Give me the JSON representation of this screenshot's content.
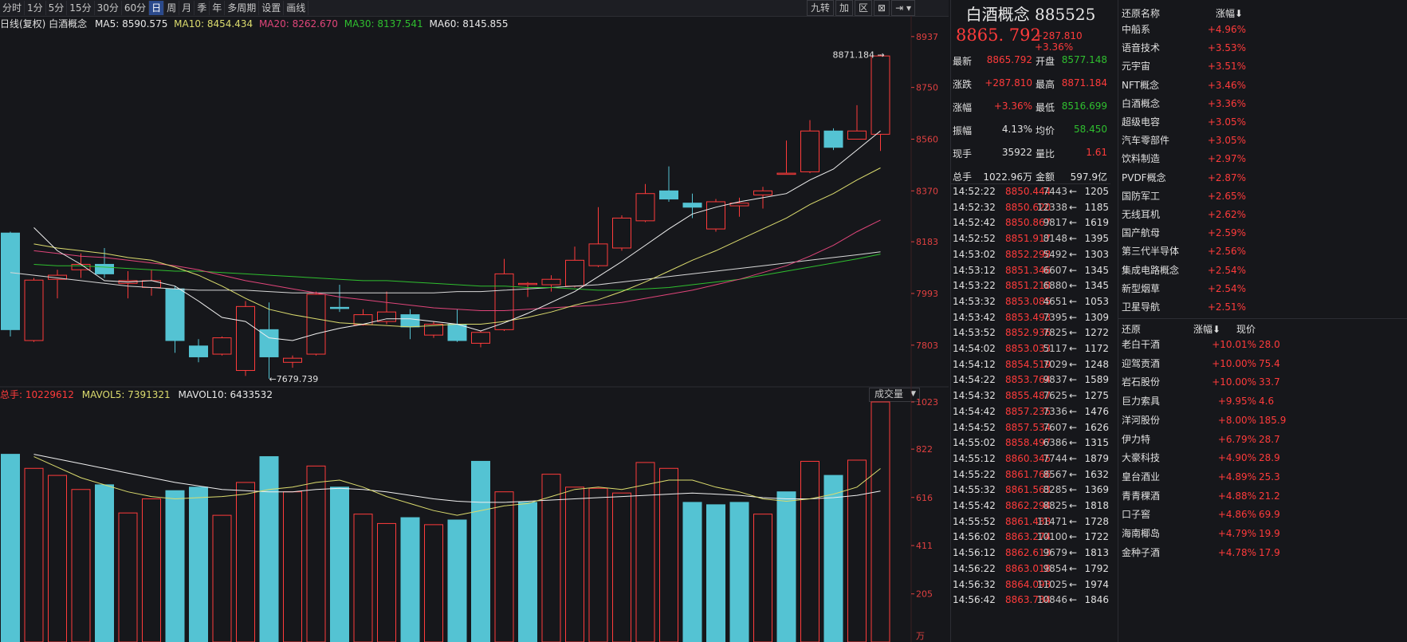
{
  "toolbar": {
    "periods": [
      "分时",
      "1分",
      "5分",
      "15分",
      "30分",
      "60分",
      "日",
      "周",
      "月",
      "季",
      "年",
      "多周期",
      "设置",
      "画线"
    ],
    "active": "日",
    "right_buttons": [
      "九转",
      "加",
      "区",
      "⊠"
    ]
  },
  "ma_legend": {
    "name": "日线(复权) 白酒概念",
    "ma5": "MA5: 8590.575",
    "ma10": "MA10: 8454.434",
    "ma20": "MA20: 8262.670",
    "ma30": "MA30: 8137.541",
    "ma60": "MA60: 8145.855"
  },
  "vol_legend": {
    "total": "总手: 10229612",
    "mavol5": "MAVOL5: 7391321",
    "mavol10": "MAVOL10: 6433532",
    "dropdown": "成交量"
  },
  "colors": {
    "up": "#ff3b3b",
    "down": "#54c3d3",
    "ma5": "#e8e8e8",
    "ma10": "#dcdc6e",
    "ma20": "#e0457a",
    "ma30": "#2fbf2f",
    "ma60": "#e8e8e8",
    "axis": "#e04040"
  },
  "chart_data": [
    {
      "type": "candlestick",
      "title": "白酒概念 日线(复权)",
      "y_ticks": [
        7803,
        7993,
        8183,
        8370,
        8560,
        8750,
        8937
      ],
      "ylim": [
        7650,
        8960
      ],
      "annotations": {
        "high_label": "8871.184",
        "low_label": "7679.739"
      },
      "candles": [
        {
          "o": 8215,
          "c": 7860,
          "h": 8220,
          "l": 7835
        },
        {
          "o": 7820,
          "c": 8042,
          "h": 8050,
          "l": 7815
        },
        {
          "o": 8045,
          "c": 8060,
          "h": 8080,
          "l": 7975
        },
        {
          "o": 8080,
          "c": 8100,
          "h": 8140,
          "l": 8050
        },
        {
          "o": 8100,
          "c": 8065,
          "h": 8160,
          "l": 8050
        },
        {
          "o": 8030,
          "c": 8040,
          "h": 8075,
          "l": 7975
        },
        {
          "o": 8015,
          "c": 8040,
          "h": 8080,
          "l": 7985
        },
        {
          "o": 8010,
          "c": 7820,
          "h": 8020,
          "l": 7775
        },
        {
          "o": 7800,
          "c": 7760,
          "h": 7825,
          "l": 7740
        },
        {
          "o": 7770,
          "c": 7830,
          "h": 7835,
          "l": 7765
        },
        {
          "o": 7710,
          "c": 7945,
          "h": 7965,
          "l": 7690
        },
        {
          "o": 7860,
          "c": 7760,
          "h": 7960,
          "l": 7679.739
        },
        {
          "o": 7740,
          "c": 7755,
          "h": 7765,
          "l": 7720
        },
        {
          "o": 7770,
          "c": 7990,
          "h": 8000,
          "l": 7765
        },
        {
          "o": 7942,
          "c": 7938,
          "h": 8025,
          "l": 7925
        },
        {
          "o": 7878,
          "c": 7915,
          "h": 7935,
          "l": 7875
        },
        {
          "o": 7890,
          "c": 7925,
          "h": 8000,
          "l": 7880
        },
        {
          "o": 7915,
          "c": 7870,
          "h": 7935,
          "l": 7825
        },
        {
          "o": 7840,
          "c": 7880,
          "h": 7890,
          "l": 7830
        },
        {
          "o": 7880,
          "c": 7820,
          "h": 7935,
          "l": 7815
        },
        {
          "o": 7810,
          "c": 7850,
          "h": 7855,
          "l": 7795
        },
        {
          "o": 7860,
          "c": 8065,
          "h": 8120,
          "l": 7855
        },
        {
          "o": 8030,
          "c": 8030,
          "h": 8035,
          "l": 7980
        },
        {
          "o": 8025,
          "c": 8045,
          "h": 8060,
          "l": 8000
        },
        {
          "o": 8020,
          "c": 8115,
          "h": 8165,
          "l": 8015
        },
        {
          "o": 8095,
          "c": 8175,
          "h": 8310,
          "l": 8090
        },
        {
          "o": 8160,
          "c": 8270,
          "h": 8280,
          "l": 8150
        },
        {
          "o": 8260,
          "c": 8360,
          "h": 8395,
          "l": 8255
        },
        {
          "o": 8370,
          "c": 8340,
          "h": 8460,
          "l": 8330
        },
        {
          "o": 8325,
          "c": 8310,
          "h": 8360,
          "l": 8270
        },
        {
          "o": 8230,
          "c": 8330,
          "h": 8340,
          "l": 8220
        },
        {
          "o": 8315,
          "c": 8325,
          "h": 8345,
          "l": 8275
        },
        {
          "o": 8355,
          "c": 8370,
          "h": 8385,
          "l": 8305
        },
        {
          "o": 8435,
          "c": 8435,
          "h": 8555,
          "l": 8430
        },
        {
          "o": 8440,
          "c": 8590,
          "h": 8630,
          "l": 8435
        },
        {
          "o": 8590,
          "c": 8530,
          "h": 8600,
          "l": 8520
        },
        {
          "o": 8560,
          "c": 8590,
          "h": 8685,
          "l": 8565
        },
        {
          "o": 8578,
          "c": 8865.792,
          "h": 8871.184,
          "l": 8516.699
        }
      ],
      "ma": {
        "MA5": [
          null,
          8235,
          8150,
          8100,
          8040,
          8035,
          8040,
          8020,
          7965,
          7905,
          7890,
          7830,
          7820,
          7845,
          7865,
          7880,
          7900,
          7900,
          7890,
          7880,
          7855,
          7885,
          7920,
          7960,
          8000,
          8055,
          8110,
          8170,
          8230,
          8285,
          8310,
          8330,
          8345,
          8360,
          8410,
          8450,
          8520,
          8590.575
        ],
        "MA10": [
          null,
          8175,
          8160,
          8150,
          8140,
          8125,
          8115,
          8090,
          8060,
          8020,
          7975,
          7935,
          7915,
          7900,
          7885,
          7880,
          7875,
          7870,
          7875,
          7880,
          7880,
          7890,
          7905,
          7925,
          7950,
          7970,
          8000,
          8035,
          8075,
          8115,
          8150,
          8190,
          8230,
          8270,
          8320,
          8360,
          8410,
          8454.434
        ],
        "MA20": [
          null,
          8150,
          8140,
          8130,
          8125,
          8115,
          8105,
          8095,
          8080,
          8060,
          8040,
          8025,
          8010,
          7995,
          7980,
          7970,
          7960,
          7950,
          7940,
          7935,
          7930,
          7930,
          7935,
          7940,
          7945,
          7950,
          7960,
          7975,
          7990,
          8005,
          8025,
          8045,
          8070,
          8095,
          8130,
          8170,
          8220,
          8262.67
        ],
        "MA30": [
          null,
          8100,
          8095,
          8095,
          8090,
          8085,
          8080,
          8075,
          8075,
          8070,
          8065,
          8060,
          8055,
          8050,
          8045,
          8040,
          8040,
          8035,
          8030,
          8025,
          8020,
          8020,
          8015,
          8015,
          8010,
          8005,
          8005,
          8010,
          8015,
          8025,
          8035,
          8045,
          8060,
          8075,
          8090,
          8105,
          8120,
          8137.541
        ],
        "MA60": [
          8070,
          8060,
          8050,
          8040,
          8030,
          8020,
          8015,
          8010,
          8005,
          8005,
          8005,
          8000,
          7995,
          7995,
          7995,
          7995,
          7995,
          7995,
          7995,
          8000,
          8000,
          8005,
          8010,
          8015,
          8020,
          8025,
          8035,
          8045,
          8055,
          8065,
          8075,
          8085,
          8095,
          8105,
          8115,
          8125,
          8135,
          8145.855
        ]
      }
    },
    {
      "type": "bar",
      "title": "成交量",
      "y_ticks": [
        205,
        411,
        616,
        822,
        1023
      ],
      "y_unit": "万",
      "ylim": [
        0,
        1023
      ],
      "values": [
        800,
        740,
        710,
        650,
        670,
        550,
        610,
        645,
        660,
        540,
        680,
        790,
        640,
        750,
        660,
        545,
        505,
        530,
        500,
        520,
        770,
        640,
        595,
        715,
        660,
        655,
        635,
        765,
        740,
        595,
        585,
        595,
        545,
        640,
        770,
        710,
        775,
        1023
      ],
      "up": [
        false,
        true,
        true,
        true,
        false,
        true,
        true,
        false,
        false,
        true,
        true,
        false,
        true,
        true,
        false,
        true,
        true,
        false,
        true,
        false,
        false,
        true,
        false,
        true,
        true,
        true,
        true,
        true,
        true,
        false,
        false,
        false,
        true,
        false,
        true,
        false,
        true,
        true
      ],
      "MAVOL5": [
        null,
        790,
        745,
        700,
        670,
        640,
        620,
        610,
        615,
        620,
        630,
        650,
        660,
        680,
        690,
        660,
        620,
        590,
        560,
        540,
        560,
        580,
        590,
        620,
        650,
        660,
        650,
        670,
        690,
        690,
        660,
        640,
        610,
        600,
        610,
        630,
        660,
        739.1
      ],
      "MAVOL10": [
        null,
        800,
        780,
        760,
        740,
        720,
        700,
        680,
        665,
        650,
        645,
        640,
        640,
        650,
        655,
        650,
        640,
        625,
        610,
        600,
        595,
        595,
        600,
        605,
        610,
        615,
        620,
        625,
        630,
        635,
        630,
        625,
        615,
        610,
        610,
        615,
        625,
        643.4
      ]
    }
  ],
  "quote": {
    "title": "白酒概念 885525",
    "price": "8865. 792",
    "change": "+287.810 +3.36%",
    "rows": [
      {
        "l1": "最新",
        "v1": "8865.792",
        "l2": "开盘",
        "v2": "8577.148",
        "c1": "#ff3b3b",
        "c2": "#2fbf2f"
      },
      {
        "l1": "涨跌",
        "v1": "+287.810",
        "l2": "最高",
        "v2": "8871.184",
        "c1": "#ff3b3b",
        "c2": "#ff3b3b"
      },
      {
        "l1": "涨幅",
        "v1": "+3.36%",
        "l2": "最低",
        "v2": "8516.699",
        "c1": "#ff3b3b",
        "c2": "#2fbf2f"
      },
      {
        "l1": "振幅",
        "v1": "4.13%",
        "l2": "均价",
        "v2": "58.450",
        "c1": "#e0e0e0",
        "c2": "#2fbf2f"
      },
      {
        "l1": "现手",
        "v1": "35922",
        "l2": "量比",
        "v2": "1.61",
        "c1": "#e0e0e0",
        "c2": "#ff3b3b"
      },
      {
        "l1": "总手",
        "v1": "1022.96万",
        "l2": "金额",
        "v2": "597.9亿",
        "c1": "#e0e0e0",
        "c2": "#e0e0e0"
      }
    ],
    "ticks": [
      {
        "t": "14:52:22",
        "p": "8850.444",
        "v": "7443",
        "a": "1205"
      },
      {
        "t": "14:52:32",
        "p": "8850.620",
        "v": "12338",
        "a": "1185"
      },
      {
        "t": "14:52:42",
        "p": "8850.867",
        "v": "9817",
        "a": "1619"
      },
      {
        "t": "14:52:52",
        "p": "8851.917",
        "v": "8148",
        "a": "1395"
      },
      {
        "t": "14:53:02",
        "p": "8852.298",
        "v": "5492",
        "a": "1303"
      },
      {
        "t": "14:53:12",
        "p": "8851.346",
        "v": "6607",
        "a": "1345"
      },
      {
        "t": "14:53:22",
        "p": "8851.218",
        "v": "6880",
        "a": "1345"
      },
      {
        "t": "14:53:32",
        "p": "8853.085",
        "v": "4651",
        "a": "1053"
      },
      {
        "t": "14:53:42",
        "p": "8853.493",
        "v": "7395",
        "a": "1309"
      },
      {
        "t": "14:53:52",
        "p": "8852.936",
        "v": "7825",
        "a": "1272"
      },
      {
        "t": "14:54:02",
        "p": "8853.033",
        "v": "5117",
        "a": "1172"
      },
      {
        "t": "14:54:12",
        "p": "8854.519",
        "v": "7029",
        "a": "1248"
      },
      {
        "t": "14:54:22",
        "p": "8853.764",
        "v": "9837",
        "a": "1589"
      },
      {
        "t": "14:54:32",
        "p": "8855.487",
        "v": "7625",
        "a": "1275"
      },
      {
        "t": "14:54:42",
        "p": "8857.235",
        "v": "7336",
        "a": "1476"
      },
      {
        "t": "14:54:52",
        "p": "8857.534",
        "v": "7607",
        "a": "1626"
      },
      {
        "t": "14:55:02",
        "p": "8858.497",
        "v": "6386",
        "a": "1315"
      },
      {
        "t": "14:55:12",
        "p": "8860.345",
        "v": "7744",
        "a": "1879"
      },
      {
        "t": "14:55:22",
        "p": "8861.766",
        "v": "8567",
        "a": "1632"
      },
      {
        "t": "14:55:32",
        "p": "8861.563",
        "v": "8285",
        "a": "1369"
      },
      {
        "t": "14:55:42",
        "p": "8862.294",
        "v": "8825",
        "a": "1818"
      },
      {
        "t": "14:55:52",
        "p": "8861.438",
        "v": "11471",
        "a": "1728"
      },
      {
        "t": "14:56:02",
        "p": "8863.274",
        "v": "10100",
        "a": "1722"
      },
      {
        "t": "14:56:12",
        "p": "8862.613",
        "v": "9679",
        "a": "1813"
      },
      {
        "t": "14:56:22",
        "p": "8863.018",
        "v": "9854",
        "a": "1792"
      },
      {
        "t": "14:56:32",
        "p": "8864.093",
        "v": "11025",
        "a": "1974"
      },
      {
        "t": "14:56:42",
        "p": "8863.734",
        "v": "10846",
        "a": "1846"
      }
    ]
  },
  "sectors": {
    "header_name": "还原名称",
    "header_chg": "涨幅",
    "items": [
      {
        "n": "中船系",
        "c": "+4.96%"
      },
      {
        "n": "语音技术",
        "c": "+3.53%"
      },
      {
        "n": "元宇宙",
        "c": "+3.51%"
      },
      {
        "n": "NFT概念",
        "c": "+3.46%"
      },
      {
        "n": "白酒概念",
        "c": "+3.36%"
      },
      {
        "n": "超级电容",
        "c": "+3.05%"
      },
      {
        "n": "汽车零部件",
        "c": "+3.05%"
      },
      {
        "n": "饮料制造",
        "c": "+2.97%"
      },
      {
        "n": "PVDF概念",
        "c": "+2.87%"
      },
      {
        "n": "国防军工",
        "c": "+2.65%"
      },
      {
        "n": "无线耳机",
        "c": "+2.62%"
      },
      {
        "n": "国产航母",
        "c": "+2.59%"
      },
      {
        "n": "第三代半导体",
        "c": "+2.56%"
      },
      {
        "n": "集成电路概念",
        "c": "+2.54%"
      },
      {
        "n": "新型烟草",
        "c": "+2.54%"
      },
      {
        "n": "卫星导航",
        "c": "+2.51%"
      }
    ]
  },
  "stocks": {
    "header_name": "还原",
    "header_chg": "涨幅",
    "header_price": "现价",
    "items": [
      {
        "n": "老白干酒",
        "c": "+10.01%",
        "p": "28.0"
      },
      {
        "n": "迎驾贡酒",
        "c": "+10.00%",
        "p": "75.4"
      },
      {
        "n": "岩石股份",
        "c": "+10.00%",
        "p": "33.7"
      },
      {
        "n": "巨力索具",
        "c": "+9.95%",
        "p": "4.6"
      },
      {
        "n": "洋河股份",
        "c": "+8.00%",
        "p": "185.9"
      },
      {
        "n": "伊力特",
        "c": "+6.79%",
        "p": "28.7"
      },
      {
        "n": "大豪科技",
        "c": "+4.90%",
        "p": "28.9"
      },
      {
        "n": "皇台酒业",
        "c": "+4.89%",
        "p": "25.3"
      },
      {
        "n": "青青稞酒",
        "c": "+4.88%",
        "p": "21.2"
      },
      {
        "n": "口子窖",
        "c": "+4.86%",
        "p": "69.9"
      },
      {
        "n": "海南椰岛",
        "c": "+4.79%",
        "p": "19.9"
      },
      {
        "n": "金种子酒",
        "c": "+4.78%",
        "p": "17.9"
      }
    ]
  }
}
